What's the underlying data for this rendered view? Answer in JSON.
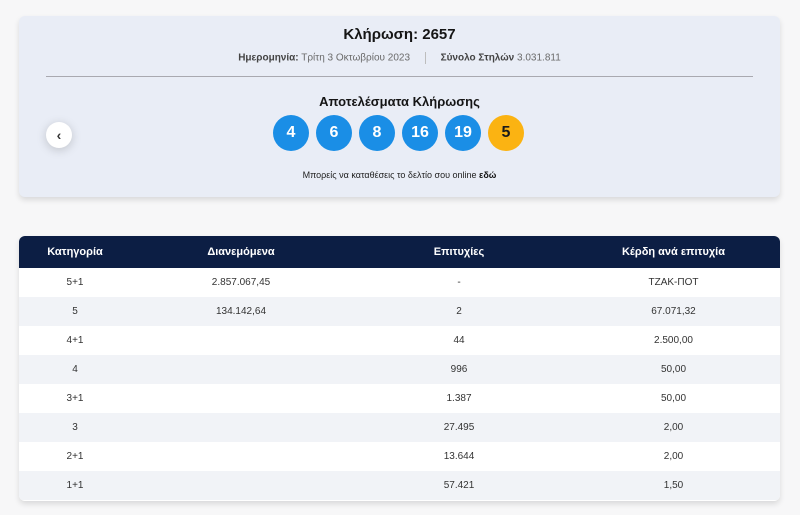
{
  "draw": {
    "title": "Κλήρωση: 2657",
    "date_label": "Ημερομηνία:",
    "date_value": "Τρίτη 3 Οκτωβρίου 2023",
    "columns_label": "Σύνολο Στηλών",
    "columns_value": "3.031.811",
    "results_title": "Αποτελέσματα Κλήρωσης",
    "numbers": [
      "4",
      "6",
      "8",
      "16",
      "19"
    ],
    "joker": "5",
    "prev_icon": "‹",
    "online_text": "Μπορείς να καταθέσεις το δελτίο σου online",
    "online_link": "εδώ"
  },
  "colors": {
    "ball": "#1a8ee6",
    "joker": "#fbb312",
    "header": "#0c1e44"
  },
  "table": {
    "headers": [
      "Κατηγορία",
      "Διανεμόμενα",
      "Επιτυχίες",
      "Κέρδη ανά επιτυχία"
    ],
    "rows": [
      [
        "5+1",
        "2.857.067,45",
        "-",
        "ΤΖΑΚ-ΠΟΤ"
      ],
      [
        "5",
        "134.142,64",
        "2",
        "67.071,32"
      ],
      [
        "4+1",
        "",
        "44",
        "2.500,00"
      ],
      [
        "4",
        "",
        "996",
        "50,00"
      ],
      [
        "3+1",
        "",
        "1.387",
        "50,00"
      ],
      [
        "3",
        "",
        "27.495",
        "2,00"
      ],
      [
        "2+1",
        "",
        "13.644",
        "2,00"
      ],
      [
        "1+1",
        "",
        "57.421",
        "1,50"
      ]
    ]
  }
}
